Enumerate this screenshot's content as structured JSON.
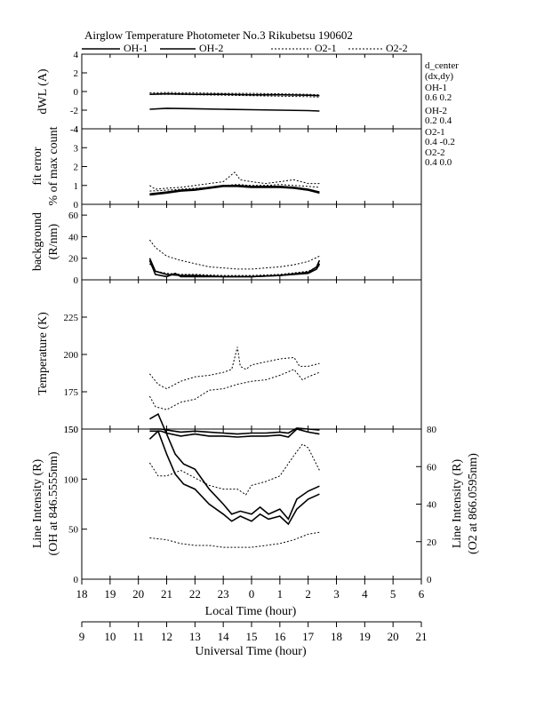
{
  "header": {
    "title": "Airglow Temperature Photometer No.3  Rikubetsu    190602"
  },
  "legend": [
    {
      "name": "OH-1",
      "style": "solid"
    },
    {
      "name": "OH-2",
      "style": "solid"
    },
    {
      "name": "O2-1",
      "style": "dotted"
    },
    {
      "name": "O2-2",
      "style": "dotted"
    }
  ],
  "d_center": {
    "title": "d_center",
    "subtitle": "(dx,dy)",
    "entries": [
      {
        "name": "OH-1",
        "value": "0.6   0.2"
      },
      {
        "name": "OH-2",
        "value": "0.2   0.4"
      },
      {
        "name": "O2-1",
        "value": "0.4   -0.2"
      },
      {
        "name": "O2-2",
        "value": "0.4   0.0"
      }
    ]
  },
  "x_axes": {
    "local": {
      "label": "Local Time (hour)",
      "ticks": [
        "18",
        "19",
        "20",
        "21",
        "22",
        "23",
        "0",
        "1",
        "2",
        "3",
        "4",
        "5",
        "6"
      ]
    },
    "universal": {
      "label": "Universal Time (hour)",
      "ticks": [
        "9",
        "10",
        "11",
        "12",
        "13",
        "14",
        "15",
        "16",
        "17",
        "18",
        "19",
        "20",
        "21"
      ]
    }
  },
  "chart_data": [
    {
      "id": "dwl",
      "type": "line",
      "ylabel": [
        "dWL (A)"
      ],
      "ylim": [
        -4,
        4
      ],
      "yticks": [
        -4,
        -2,
        0,
        2,
        4
      ],
      "series": [
        {
          "name": "OH-1",
          "style": "solid",
          "x": [
            20.4,
            21,
            22,
            23,
            0,
            1,
            2,
            2.4
          ],
          "y": [
            -1.9,
            -1.8,
            -1.85,
            -1.9,
            -1.95,
            -2.0,
            -2.05,
            -2.1
          ]
        },
        {
          "name": "OH-2",
          "style": "solid",
          "x": [
            20.4,
            21,
            22,
            23,
            0,
            1,
            2,
            2.4
          ],
          "y": [
            -0.3,
            -0.25,
            -0.3,
            -0.3,
            -0.35,
            -0.35,
            -0.4,
            -0.45
          ]
        },
        {
          "name": "O2-1",
          "style": "dotted",
          "x": [
            20.4,
            21,
            22,
            23,
            0,
            1,
            2,
            2.4
          ],
          "y": [
            -0.15,
            -0.1,
            -0.15,
            -0.2,
            -0.2,
            -0.25,
            -0.3,
            -0.35
          ]
        },
        {
          "name": "O2-2",
          "style": "dotted",
          "x": [
            20.4,
            21,
            22,
            23,
            0,
            1,
            2,
            2.4
          ],
          "y": [
            -0.3,
            -0.3,
            -0.35,
            -0.4,
            -0.45,
            -0.5,
            -0.55,
            -0.6
          ]
        }
      ]
    },
    {
      "id": "fit",
      "type": "line",
      "ylabel": [
        "fit error",
        "% of max count"
      ],
      "ylim": [
        0,
        4
      ],
      "yticks": [
        0,
        1,
        2,
        3,
        4
      ],
      "series": [
        {
          "name": "OH-1",
          "style": "solid",
          "x": [
            20.4,
            21,
            21.5,
            22,
            22.5,
            23,
            23.5,
            0,
            0.5,
            1,
            1.5,
            2,
            2.4
          ],
          "y": [
            0.5,
            0.6,
            0.7,
            0.75,
            0.85,
            0.95,
            0.95,
            0.9,
            0.9,
            0.9,
            0.85,
            0.75,
            0.6
          ]
        },
        {
          "name": "OH-2",
          "style": "solid",
          "x": [
            20.4,
            21,
            21.5,
            22,
            22.5,
            23,
            23.5,
            0,
            0.5,
            1,
            1.5,
            2,
            2.4
          ],
          "y": [
            0.55,
            0.65,
            0.75,
            0.8,
            0.9,
            1.0,
            1.0,
            0.95,
            0.95,
            0.95,
            0.9,
            0.8,
            0.65
          ]
        },
        {
          "name": "O2-1",
          "style": "dotted",
          "x": [
            20.4,
            20.6,
            21,
            21.5,
            22,
            22.5,
            23,
            23.4,
            23.6,
            0,
            0.5,
            1,
            1.5,
            2,
            2.4
          ],
          "y": [
            1.0,
            0.8,
            0.85,
            0.9,
            1.0,
            1.1,
            1.2,
            1.7,
            1.3,
            1.2,
            1.1,
            1.2,
            1.3,
            1.1,
            1.1
          ]
        },
        {
          "name": "O2-2",
          "style": "dotted",
          "x": [
            20.4,
            21,
            21.5,
            22,
            22.5,
            23,
            23.5,
            0,
            0.5,
            1,
            1.5,
            2,
            2.4
          ],
          "y": [
            0.7,
            0.75,
            0.8,
            0.85,
            0.9,
            1.0,
            1.05,
            1.0,
            1.0,
            1.05,
            1.0,
            0.95,
            0.9
          ]
        }
      ]
    },
    {
      "id": "bg",
      "type": "line",
      "ylabel": [
        "background",
        "(R/nm)"
      ],
      "ylim": [
        0,
        70
      ],
      "yticks": [
        0,
        20,
        40,
        60
      ],
      "series": [
        {
          "name": "OH-1",
          "style": "solid",
          "x": [
            20.4,
            20.6,
            21,
            21.3,
            21.5,
            22,
            23,
            0,
            1,
            2,
            2.3,
            2.4
          ],
          "y": [
            18,
            5,
            3,
            6,
            3,
            3,
            3,
            3,
            4,
            6,
            10,
            15
          ]
        },
        {
          "name": "OH-2",
          "style": "solid",
          "x": [
            20.4,
            20.6,
            21,
            21.5,
            22,
            23,
            0,
            1,
            2,
            2.3,
            2.4
          ],
          "y": [
            20,
            8,
            5,
            4,
            4,
            3,
            3,
            4,
            7,
            12,
            18
          ]
        },
        {
          "name": "O2-1",
          "style": "dotted",
          "x": [
            20.4,
            20.6,
            21,
            21.5,
            22,
            22.5,
            23,
            23.5,
            0,
            0.5,
            1,
            1.5,
            2,
            2.4
          ],
          "y": [
            37,
            30,
            22,
            18,
            15,
            12,
            11,
            10,
            10,
            11,
            12,
            14,
            17,
            22
          ]
        },
        {
          "name": "O2-2",
          "style": "dotted",
          "x": [
            20.4,
            20.6,
            21,
            21.5,
            22,
            23,
            0,
            1,
            2,
            2.4
          ],
          "y": [
            15,
            8,
            6,
            5,
            5,
            4,
            4,
            5,
            8,
            13
          ]
        }
      ]
    },
    {
      "id": "temp",
      "type": "line",
      "ylabel": [
        "Temperature (K)"
      ],
      "ylim": [
        150,
        250
      ],
      "yticks": [
        150,
        175,
        200,
        225
      ],
      "series": [
        {
          "name": "O2-1",
          "style": "dotted",
          "x": [
            20.4,
            20.7,
            21,
            21.5,
            22,
            22.5,
            23,
            23.3,
            23.5,
            23.6,
            23.8,
            0,
            0.5,
            1,
            1.5,
            1.7,
            2,
            2.4
          ],
          "y": [
            187,
            180,
            177,
            182,
            185,
            186,
            188,
            190,
            205,
            192,
            190,
            193,
            195,
            197,
            198,
            192,
            192,
            194
          ]
        },
        {
          "name": "O2-2",
          "style": "dotted",
          "x": [
            20.4,
            20.6,
            21,
            21.5,
            22,
            22.5,
            23,
            23.5,
            0,
            0.5,
            1,
            1.5,
            1.8,
            2,
            2.4
          ],
          "y": [
            172,
            165,
            163,
            168,
            170,
            176,
            177,
            180,
            182,
            183,
            186,
            190,
            183,
            185,
            188
          ]
        }
      ]
    },
    {
      "id": "int",
      "type": "line",
      "ylabel": [
        "Line Intensity (R)",
        "(OH at 846.5555nm)"
      ],
      "ylim": [
        0,
        150
      ],
      "yticks": [
        0,
        50,
        100,
        150
      ],
      "y2label": [
        "Line Intensity (R)",
        "(O2 at 866.0595nm)"
      ],
      "y2lim": [
        0,
        80
      ],
      "y2ticks": [
        0,
        20,
        40,
        60,
        80
      ],
      "series": [
        {
          "name": "OH-1",
          "axis": "left",
          "style": "solid",
          "x": [
            20.4,
            20.7,
            21,
            21.3,
            21.6,
            22,
            22.5,
            23,
            23.3,
            23.6,
            0,
            0.3,
            0.6,
            1,
            1.3,
            1.6,
            2,
            2.4
          ],
          "y": [
            160,
            165,
            145,
            125,
            115,
            110,
            90,
            75,
            65,
            68,
            65,
            72,
            65,
            70,
            60,
            80,
            88,
            93
          ]
        },
        {
          "name": "OH-2",
          "axis": "left",
          "style": "solid",
          "x": [
            20.4,
            20.7,
            21,
            21.3,
            21.6,
            22,
            22.5,
            23,
            23.3,
            23.6,
            0,
            0.3,
            0.6,
            1,
            1.3,
            1.6,
            2,
            2.4
          ],
          "y": [
            140,
            148,
            125,
            105,
            95,
            90,
            75,
            65,
            58,
            63,
            58,
            65,
            60,
            63,
            55,
            70,
            80,
            85
          ]
        },
        {
          "name": "O2-1",
          "axis": "right",
          "style": "dotted",
          "x": [
            20.4,
            20.7,
            21,
            21.5,
            22,
            22.5,
            23,
            23.5,
            23.8,
            0,
            0.5,
            1,
            1.5,
            1.8,
            2,
            2.4
          ],
          "y": [
            62,
            55,
            55,
            58,
            54,
            50,
            48,
            48,
            45,
            50,
            52,
            55,
            66,
            72,
            70,
            58
          ]
        },
        {
          "name": "O2-2",
          "axis": "right",
          "style": "dotted",
          "x": [
            20.4,
            21,
            21.5,
            22,
            22.5,
            23,
            23.5,
            0,
            0.5,
            1,
            1.5,
            2,
            2.4
          ],
          "y": [
            22,
            21,
            19,
            18,
            18,
            17,
            17,
            17,
            18,
            19,
            21,
            24,
            25
          ]
        },
        {
          "name": "OH-1 (top)",
          "axis": "left",
          "style": "solid",
          "x": [
            20.4,
            20.8,
            21,
            21.5,
            22,
            22.5,
            23,
            23.5,
            0,
            0.5,
            1,
            1.3,
            1.6,
            2,
            2.4
          ],
          "y": [
            148,
            148,
            146,
            143,
            145,
            143,
            143,
            142,
            143,
            143,
            144,
            142,
            150,
            147,
            145
          ]
        },
        {
          "name": "OH-2 (top)",
          "axis": "left",
          "style": "solid",
          "x": [
            20.4,
            20.8,
            21,
            21.5,
            22,
            22.5,
            23,
            23.5,
            0,
            0.5,
            1,
            1.3,
            1.6,
            2,
            2.4
          ],
          "y": [
            150,
            150,
            149,
            147,
            148,
            147,
            146,
            145,
            146,
            146,
            147,
            146,
            151,
            150,
            149
          ]
        }
      ]
    }
  ]
}
